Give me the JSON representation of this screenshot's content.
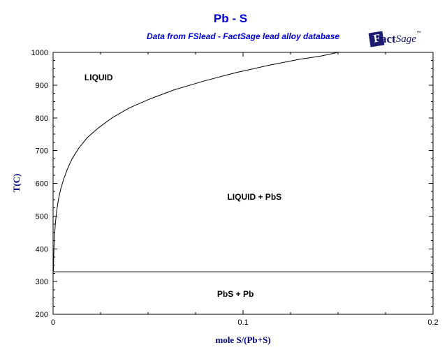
{
  "title": "Pb - S",
  "subtitle": "Data from FSlead - FactSage lead alloy database",
  "logo": {
    "f": "F",
    "act": "act",
    "sage": "Sage",
    "tm": "™"
  },
  "colors": {
    "title_blue": "#0000e0",
    "axis_title_navy": "#000080",
    "logo_navy": "#1b1b70",
    "line_black": "#000000",
    "background": "#ffffff"
  },
  "chart_data": {
    "type": "line",
    "title": "Pb - S",
    "subtitle": "Data from FSlead - FactSage lead alloy database",
    "xlabel": "mole S/(Pb+S)",
    "ylabel": "T(C)",
    "xlim": [
      0,
      0.2
    ],
    "ylim": [
      200,
      1000
    ],
    "x_major_tick_count": 3,
    "x_minor_step": 0.025,
    "y_minor_step": 25,
    "y_major_step": 100,
    "grid": false,
    "legend": "none",
    "ticks": "inward-mirrored-all-sides",
    "series": [
      {
        "name": "liquidus-curve",
        "points": [
          [
            0.0002,
            332
          ],
          [
            0.0003,
            370
          ],
          [
            0.0005,
            410
          ],
          [
            0.0008,
            445
          ],
          [
            0.0012,
            478
          ],
          [
            0.0018,
            512
          ],
          [
            0.0028,
            550
          ],
          [
            0.004,
            582
          ],
          [
            0.0055,
            612
          ],
          [
            0.0075,
            643
          ],
          [
            0.01,
            675
          ],
          [
            0.0135,
            707
          ],
          [
            0.018,
            740
          ],
          [
            0.024,
            770
          ],
          [
            0.031,
            800
          ],
          [
            0.04,
            830
          ],
          [
            0.051,
            858
          ],
          [
            0.064,
            886
          ],
          [
            0.079,
            912
          ],
          [
            0.096,
            938
          ],
          [
            0.113,
            960
          ],
          [
            0.13,
            979
          ],
          [
            0.141,
            989
          ],
          [
            0.15,
            1000
          ]
        ]
      },
      {
        "name": "eutectic-line",
        "points": [
          [
            0,
            330
          ],
          [
            0.2,
            330
          ]
        ]
      }
    ],
    "region_labels": [
      {
        "text": "LIQUID",
        "x": 0.024,
        "T": 923
      },
      {
        "text": "LIQUID + PbS",
        "x": 0.106,
        "T": 558
      },
      {
        "text": "PbS + Pb",
        "x": 0.096,
        "T": 262
      }
    ]
  }
}
